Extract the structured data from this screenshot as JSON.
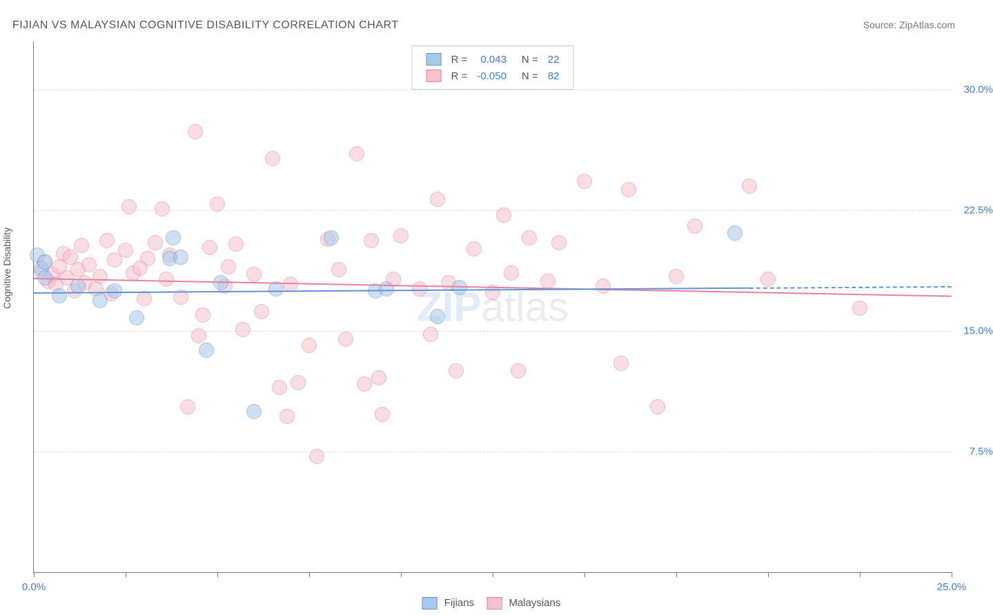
{
  "title": "FIJIAN VS MALAYSIAN COGNITIVE DISABILITY CORRELATION CHART",
  "source_label": "Source: ZipAtlas.com",
  "y_axis_label": "Cognitive Disability",
  "watermark": {
    "zip": "ZIP",
    "atlas": "atlas"
  },
  "chart": {
    "type": "scatter",
    "background_color": "#ffffff",
    "grid_color": "#dddddd",
    "border_color": "#777777",
    "xlim": [
      0,
      25
    ],
    "ylim": [
      0,
      33
    ],
    "y_ticks": [
      7.5,
      15.0,
      22.5,
      30.0
    ],
    "y_tick_labels": [
      "7.5%",
      "15.0%",
      "22.5%",
      "30.0%"
    ],
    "x_ticks": [
      0,
      2.5,
      5,
      7.5,
      10,
      12.5,
      15,
      17.5,
      20,
      22.5,
      25
    ],
    "x_tick_labels": {
      "0": "0.0%",
      "25": "25.0%"
    },
    "marker_radius": 10,
    "marker_opacity": 0.55,
    "label_fontsize": 15,
    "label_color": "#3b7dd8"
  },
  "series": {
    "fijians": {
      "name": "Fijians",
      "color_fill": "#a8c8ec",
      "color_stroke": "#5b93d6",
      "r_value": "0.043",
      "n_value": "22",
      "trend": {
        "y_start": 17.4,
        "y_end": 17.8,
        "x_end_solid": 19.5
      },
      "points": [
        [
          0.1,
          19.7
        ],
        [
          0.2,
          18.9
        ],
        [
          0.3,
          18.3
        ],
        [
          0.3,
          19.3
        ],
        [
          0.7,
          17.2
        ],
        [
          1.2,
          17.8
        ],
        [
          1.8,
          16.9
        ],
        [
          2.2,
          17.5
        ],
        [
          2.8,
          15.8
        ],
        [
          3.7,
          19.5
        ],
        [
          3.8,
          20.8
        ],
        [
          4.0,
          19.6
        ],
        [
          4.7,
          13.8
        ],
        [
          5.1,
          18.0
        ],
        [
          6.0,
          10.0
        ],
        [
          6.6,
          17.6
        ],
        [
          8.1,
          20.8
        ],
        [
          9.3,
          17.5
        ],
        [
          9.6,
          17.6
        ],
        [
          11.0,
          15.9
        ],
        [
          11.6,
          17.7
        ],
        [
          19.1,
          21.1
        ]
      ]
    },
    "malaysians": {
      "name": "Malaysians",
      "color_fill": "#f4c2cd",
      "color_stroke": "#e97f9a",
      "r_value": "-0.050",
      "n_value": "82",
      "trend": {
        "y_start": 18.3,
        "y_end": 17.2,
        "x_end_solid": 25
      },
      "points": [
        [
          0.2,
          18.7
        ],
        [
          0.3,
          19.3
        ],
        [
          0.4,
          18.1
        ],
        [
          0.5,
          18.5
        ],
        [
          0.6,
          17.9
        ],
        [
          0.7,
          19.0
        ],
        [
          0.8,
          19.8
        ],
        [
          0.9,
          18.3
        ],
        [
          1.0,
          19.6
        ],
        [
          1.1,
          17.5
        ],
        [
          1.2,
          18.8
        ],
        [
          1.3,
          20.3
        ],
        [
          1.4,
          18.0
        ],
        [
          1.5,
          19.1
        ],
        [
          1.8,
          18.4
        ],
        [
          2.0,
          20.6
        ],
        [
          2.1,
          17.3
        ],
        [
          2.2,
          19.4
        ],
        [
          2.5,
          20.0
        ],
        [
          2.6,
          22.7
        ],
        [
          2.7,
          18.6
        ],
        [
          3.0,
          17.0
        ],
        [
          3.1,
          19.5
        ],
        [
          3.3,
          20.5
        ],
        [
          3.5,
          22.6
        ],
        [
          3.6,
          18.2
        ],
        [
          3.7,
          19.7
        ],
        [
          4.0,
          17.1
        ],
        [
          4.2,
          10.3
        ],
        [
          4.4,
          27.4
        ],
        [
          4.5,
          14.7
        ],
        [
          4.6,
          16.0
        ],
        [
          4.8,
          20.2
        ],
        [
          5.0,
          22.9
        ],
        [
          5.2,
          17.8
        ],
        [
          5.3,
          19.0
        ],
        [
          5.5,
          20.4
        ],
        [
          5.7,
          15.1
        ],
        [
          6.0,
          18.5
        ],
        [
          6.2,
          16.2
        ],
        [
          6.5,
          25.7
        ],
        [
          6.7,
          11.5
        ],
        [
          6.9,
          9.7
        ],
        [
          7.0,
          17.9
        ],
        [
          7.2,
          11.8
        ],
        [
          7.5,
          14.1
        ],
        [
          7.7,
          7.2
        ],
        [
          8.0,
          20.7
        ],
        [
          8.3,
          18.8
        ],
        [
          8.5,
          14.5
        ],
        [
          8.8,
          26.0
        ],
        [
          9.0,
          11.7
        ],
        [
          9.2,
          20.6
        ],
        [
          9.4,
          12.1
        ],
        [
          9.5,
          9.8
        ],
        [
          9.8,
          18.2
        ],
        [
          10.0,
          20.9
        ],
        [
          10.5,
          17.6
        ],
        [
          10.8,
          14.8
        ],
        [
          11.0,
          23.2
        ],
        [
          11.3,
          18.0
        ],
        [
          11.5,
          12.5
        ],
        [
          12.0,
          20.1
        ],
        [
          12.5,
          17.4
        ],
        [
          12.8,
          22.2
        ],
        [
          13.0,
          18.6
        ],
        [
          13.2,
          12.5
        ],
        [
          13.5,
          20.8
        ],
        [
          14.0,
          18.1
        ],
        [
          14.3,
          20.5
        ],
        [
          15.0,
          24.3
        ],
        [
          15.5,
          17.8
        ],
        [
          16.0,
          13.0
        ],
        [
          16.2,
          23.8
        ],
        [
          17.0,
          10.3
        ],
        [
          17.5,
          18.4
        ],
        [
          18.0,
          21.5
        ],
        [
          19.5,
          24.0
        ],
        [
          20.0,
          18.2
        ],
        [
          22.5,
          16.4
        ],
        [
          1.7,
          17.6
        ],
        [
          2.9,
          18.9
        ]
      ]
    }
  },
  "legend_bottom": {
    "series": [
      "fijians",
      "malaysians"
    ]
  },
  "legend_top": {
    "r_label": "R =",
    "n_label": "N ="
  }
}
